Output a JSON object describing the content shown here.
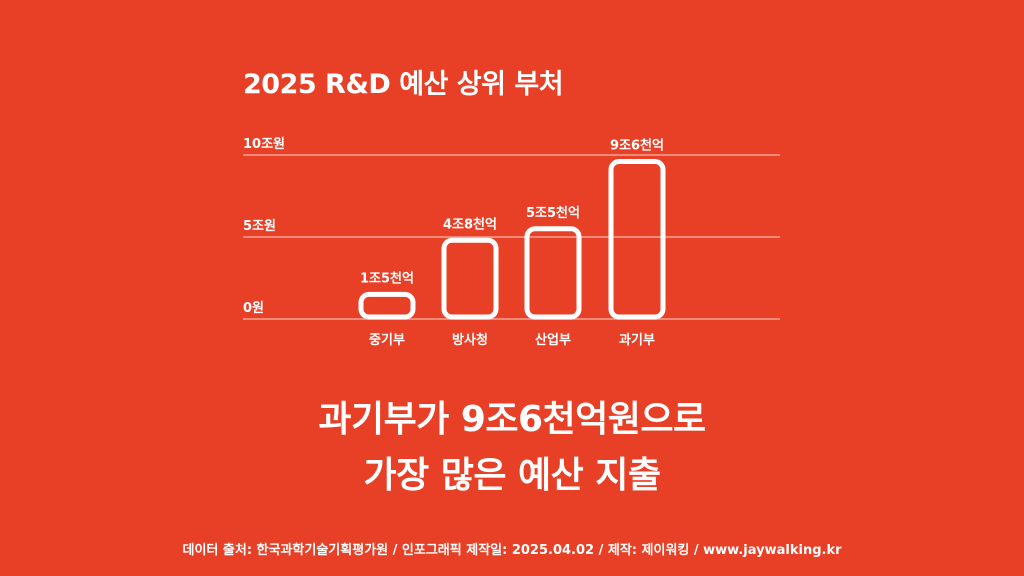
{
  "title": "2025 R&D 예산 상위 부처",
  "chart_data": {
    "type": "bar",
    "title": "2025 R&D 예산 상위 부처",
    "categories": [
      "중기부",
      "방사청",
      "산업부",
      "과기부"
    ],
    "values": [
      1.5,
      4.8,
      5.5,
      9.6
    ],
    "value_labels": [
      "1조5천억",
      "4조8천억",
      "5조5천억",
      "9조6천억"
    ],
    "unit": "조원",
    "ylim": [
      0,
      10
    ],
    "yticks": [
      0,
      5,
      10
    ],
    "ytick_labels": [
      "0원",
      "5조원",
      "10조원"
    ],
    "grid": true
  },
  "headline": {
    "line1": "과기부가 9조6천억원으로",
    "line2": "가장 많은 예산 지출"
  },
  "footer": "데이터 출처: 한국과학기술기획평가원 / 인포그래픽 제작일: 2025.04.02 / 제작: 제이워킹 / www.jaywalking.kr",
  "colors": {
    "background": "#E84027",
    "foreground": "#FFFFFF",
    "gridline": "#F4A294"
  }
}
